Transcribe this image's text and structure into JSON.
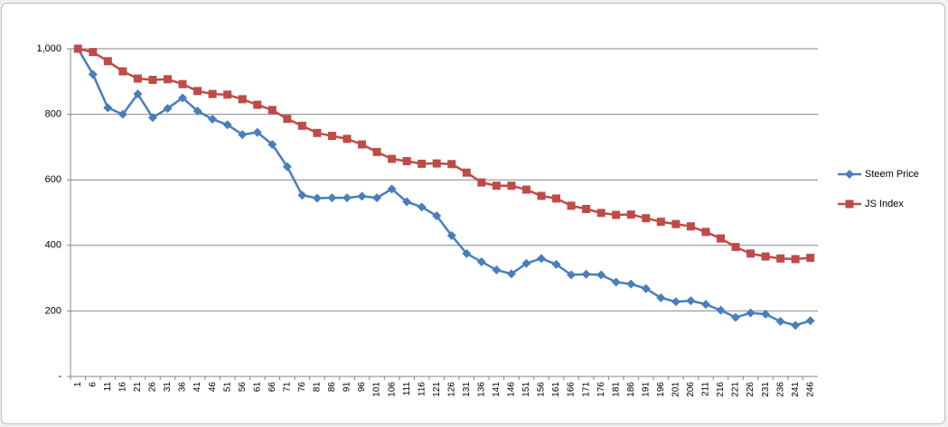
{
  "chart_data": {
    "type": "line",
    "categories": [
      "1",
      "6",
      "11",
      "16",
      "21",
      "26",
      "31",
      "36",
      "41",
      "46",
      "51",
      "56",
      "61",
      "66",
      "71",
      "76",
      "81",
      "86",
      "91",
      "96",
      "101",
      "106",
      "111",
      "116",
      "121",
      "126",
      "131",
      "136",
      "141",
      "146",
      "151",
      "156",
      "161",
      "166",
      "171",
      "176",
      "181",
      "186",
      "191",
      "196",
      "201",
      "206",
      "211",
      "216",
      "221",
      "226",
      "231",
      "236",
      "241",
      "246"
    ],
    "series": [
      {
        "name": "Steem Price",
        "color": "#4a7ebb",
        "marker": "diamond",
        "values": [
          1000,
          922,
          820,
          800,
          862,
          790,
          818,
          850,
          810,
          785,
          768,
          738,
          745,
          708,
          640,
          553,
          544,
          545,
          545,
          550,
          545,
          572,
          533,
          517,
          490,
          430,
          375,
          350,
          325,
          313,
          345,
          360,
          342,
          310,
          312,
          310,
          288,
          282,
          268,
          240,
          228,
          231,
          220,
          202,
          180,
          194,
          190,
          168,
          156,
          170
        ]
      },
      {
        "name": "JS Index",
        "color": "#be4b48",
        "marker": "square",
        "values": [
          1000,
          990,
          962,
          931,
          909,
          905,
          907,
          892,
          871,
          862,
          860,
          846,
          829,
          813,
          786,
          765,
          743,
          734,
          725,
          708,
          685,
          664,
          657,
          649,
          650,
          648,
          622,
          592,
          582,
          582,
          570,
          551,
          543,
          521,
          511,
          499,
          493,
          494,
          483,
          472,
          465,
          458,
          441,
          421,
          395,
          375,
          366,
          360,
          358,
          362
        ]
      }
    ],
    "ylim": [
      0,
      1000
    ],
    "yticks": [
      {
        "value": 0,
        "label": "-"
      },
      200,
      400,
      600,
      800,
      {
        "value": 1000,
        "label": "1,000"
      }
    ],
    "grid": true,
    "legend": "right"
  }
}
